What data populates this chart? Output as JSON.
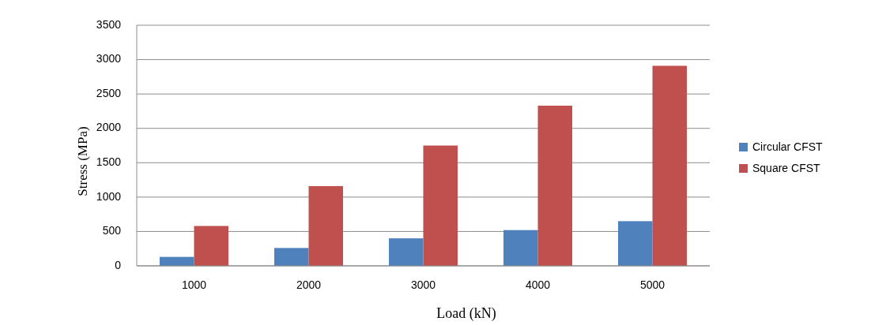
{
  "chart_data": {
    "type": "bar",
    "xlabel": "Load (kN)",
    "ylabel": "Stress (MPa)",
    "categories": [
      "1000",
      "2000",
      "3000",
      "4000",
      "5000"
    ],
    "series": [
      {
        "name": "Circular CFST",
        "color": "#4f81bd",
        "values": [
          130,
          260,
          400,
          520,
          650
        ]
      },
      {
        "name": "Square CFST",
        "color": "#c0504d",
        "values": [
          580,
          1160,
          1750,
          2330,
          2910
        ]
      }
    ],
    "ylim": [
      0,
      3500
    ],
    "yticks": [
      0,
      500,
      1000,
      1500,
      2000,
      2500,
      3000,
      3500
    ],
    "grid": "y",
    "legend": "right"
  }
}
